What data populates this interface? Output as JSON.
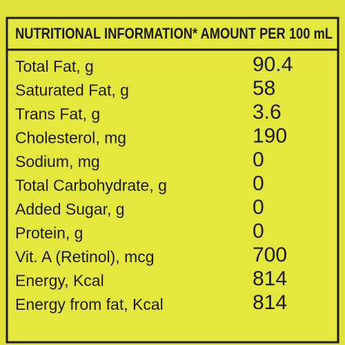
{
  "header": {
    "title": "NUTRITIONAL INFORMATION* AMOUNT PER 100 mL"
  },
  "table": {
    "rows": [
      [
        "Total Fat, g",
        "90.4"
      ],
      [
        "Saturated Fat, g",
        "58"
      ],
      [
        "Trans Fat, g",
        "3.6"
      ],
      [
        "Cholesterol, mg",
        "190"
      ],
      [
        "Sodium, mg",
        "0"
      ],
      [
        "Total Carbohydrate, g",
        "0"
      ],
      [
        "Added Sugar, g",
        "0"
      ],
      [
        "Protein, g",
        "0"
      ],
      [
        "Vit. A (Retinol), mcg",
        "700"
      ],
      [
        "Energy, Kcal",
        "814"
      ],
      [
        "Energy from fat, Kcal",
        "814"
      ]
    ]
  }
}
